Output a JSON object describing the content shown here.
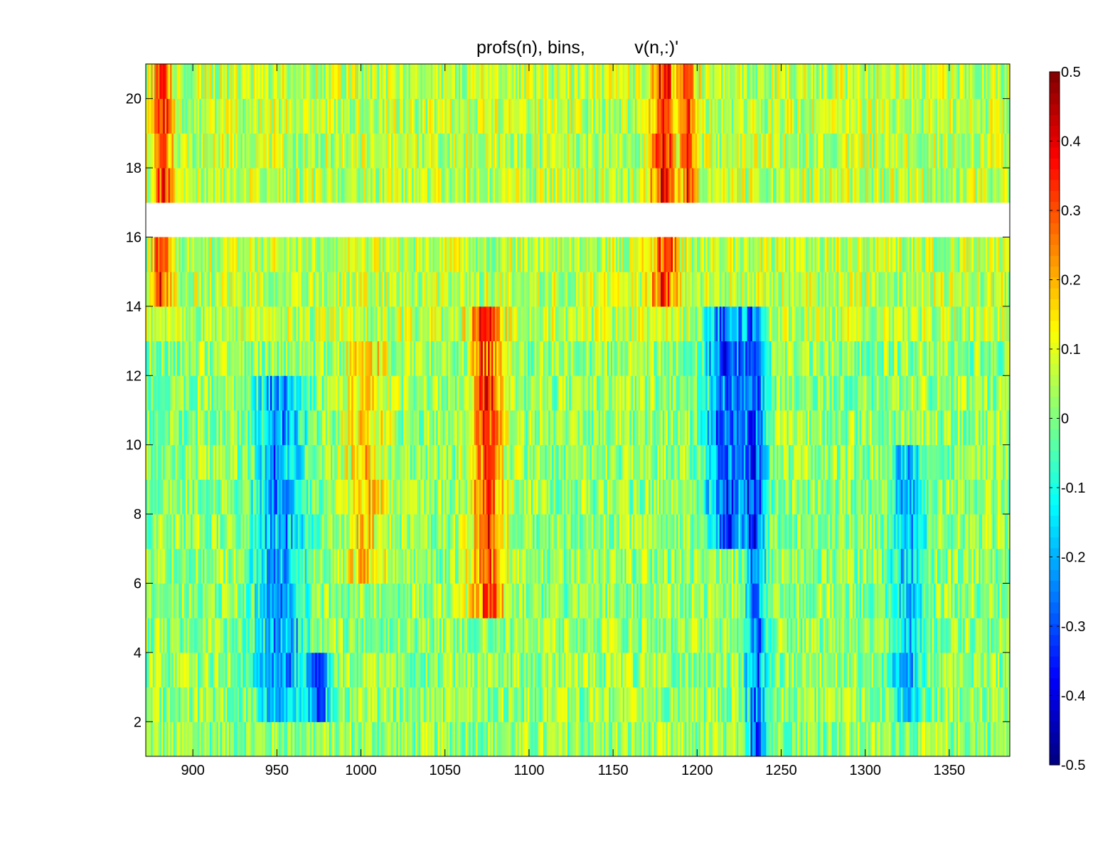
{
  "chart_data": {
    "type": "heatmap",
    "title": "profs(n), bins,          v(n,:)'",
    "xlabel": "",
    "ylabel": "",
    "xlim": [
      872,
      1386
    ],
    "ylim": [
      1,
      21
    ],
    "xticks": [
      900,
      950,
      1000,
      1050,
      1100,
      1150,
      1200,
      1250,
      1300,
      1350
    ],
    "yticks": [
      2,
      4,
      6,
      8,
      10,
      12,
      14,
      16,
      18,
      20
    ],
    "colorbar": {
      "colormap": "jet",
      "clim": [
        -0.5,
        0.5
      ],
      "ticks": [
        0.5,
        0.4,
        0.3,
        0.2,
        0.1,
        0,
        -0.1,
        -0.2,
        -0.3,
        -0.4,
        -0.5
      ]
    },
    "rows": [
      1,
      2,
      3,
      4,
      5,
      6,
      7,
      8,
      9,
      10,
      11,
      12,
      13,
      14,
      15,
      16,
      17,
      18,
      19,
      20
    ],
    "missing_rows": [
      16
    ],
    "features": [
      {
        "x_center": 882,
        "half_width": 5,
        "value": 0.3,
        "rows": [
          14,
          21
        ],
        "desc": "warm band"
      },
      {
        "x_center": 952,
        "half_width": 14,
        "value": -0.26,
        "rows": [
          2,
          12
        ],
        "desc": "cold band"
      },
      {
        "x_center": 975,
        "half_width": 6,
        "value": -0.32,
        "rows": [
          2,
          4
        ],
        "desc": "cold patch"
      },
      {
        "x_center": 1003,
        "half_width": 12,
        "value": 0.16,
        "rows": [
          6,
          13
        ],
        "desc": "warm band"
      },
      {
        "x_center": 1075,
        "half_width": 9,
        "value": 0.32,
        "rows": [
          5,
          14
        ],
        "desc": "warm band"
      },
      {
        "x_center": 1180,
        "half_width": 7,
        "value": 0.3,
        "rows": [
          14,
          21
        ],
        "desc": "warm band"
      },
      {
        "x_center": 1195,
        "half_width": 4,
        "value": 0.26,
        "rows": [
          17,
          21
        ],
        "desc": "warm band"
      },
      {
        "x_center": 1218,
        "half_width": 12,
        "value": -0.34,
        "rows": [
          7,
          14
        ],
        "desc": "cold band"
      },
      {
        "x_center": 1235,
        "half_width": 6,
        "value": -0.3,
        "rows": [
          1,
          14
        ],
        "desc": "cold band"
      },
      {
        "x_center": 1325,
        "half_width": 10,
        "value": -0.2,
        "rows": [
          2,
          10
        ],
        "desc": "cold band"
      }
    ]
  }
}
